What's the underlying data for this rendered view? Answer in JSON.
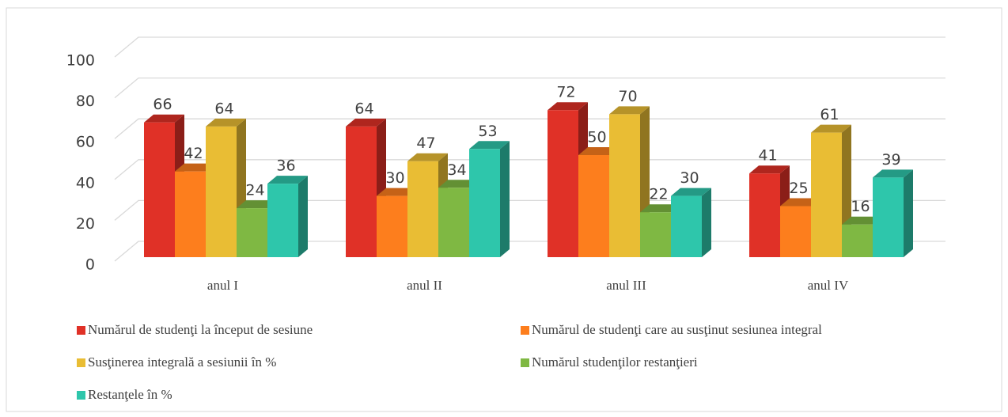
{
  "chart_data": {
    "type": "bar3d",
    "categories": [
      "anul I",
      "anul II",
      "anul III",
      "anul IV"
    ],
    "series": [
      {
        "name": "Numărul de studenţi la început de sesiune",
        "color": "#e03127",
        "values": [
          66,
          64,
          72,
          41
        ]
      },
      {
        "name": "Numărul de studenţi care au susţinut sesiunea integral",
        "color": "#fd7e1d",
        "values": [
          42,
          30,
          50,
          25
        ]
      },
      {
        "name": "Susţinerea integrală a sesiunii în %",
        "color": "#e9bd34",
        "values": [
          64,
          47,
          70,
          61
        ]
      },
      {
        "name": "Numărul studenţilor restanţieri",
        "color": "#7fb843",
        "values": [
          24,
          34,
          22,
          16
        ]
      },
      {
        "name": "Restanţele în %",
        "color": "#2ec6ab",
        "values": [
          36,
          53,
          30,
          39
        ]
      }
    ],
    "ylim": [
      0,
      100
    ],
    "yticks": [
      0,
      20,
      40,
      60,
      80,
      100
    ],
    "grid": true,
    "legend": "bottom"
  }
}
